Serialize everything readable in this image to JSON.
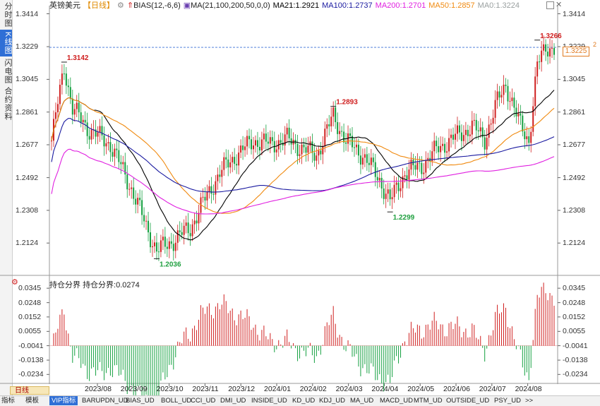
{
  "side_tabs": [
    "分时图",
    "K线图",
    "闪电图",
    "合约资料"
  ],
  "header": {
    "symbol": "英镑美元",
    "period": "【日线】",
    "bias_label": "BIAS(12,-6,6)",
    "ma_settings": "MA(21,100,200,50,0,0)",
    "ma21": "MA21:1.2921",
    "ma100": "MA100:1.2737",
    "ma200": "MA200:1.2701",
    "ma50": "MA50:1.2857",
    "ma0": "MA0:1.3224",
    "colors": {
      "ma21": "#000000",
      "ma100": "#1a1aa0",
      "ma200": "#e020e0",
      "ma50": "#f08a10",
      "ma0": "#9aa0a0"
    }
  },
  "price_axis": {
    "ticks": [
      "1.3414",
      "1.3229",
      "1.3045",
      "1.2861",
      "1.2677",
      "1.2492",
      "1.2308",
      "1.2124"
    ],
    "tick_values": [
      1.3414,
      1.3229,
      1.3045,
      1.2861,
      1.2677,
      1.2492,
      1.2308,
      1.2124
    ],
    "current_price": "1.3225",
    "marker": "2"
  },
  "annotations": [
    {
      "label": "1.3142",
      "value": 1.3142,
      "color": "#d02020",
      "date_idx": 6
    },
    {
      "label": "1.2036",
      "value": 1.2036,
      "color": "#20a040",
      "date_idx": 50
    },
    {
      "label": "1.2893",
      "value": 1.2893,
      "color": "#d02020",
      "date_idx": 134
    },
    {
      "label": "1.2299",
      "value": 1.2299,
      "color": "#20a040",
      "date_idx": 161
    },
    {
      "label": "1.3266",
      "value": 1.3266,
      "color": "#d02020",
      "date_idx": 231
    }
  ],
  "indicator": {
    "title": "持仓分界",
    "value_label": "持仓分界:0.0274",
    "ticks": [
      "0.0345",
      "0.0248",
      "0.0152",
      "0.0055",
      "-0.0041",
      "-0.0138",
      "-0.0234"
    ],
    "tick_values": [
      0.0345,
      0.0248,
      0.0152,
      0.0055,
      -0.0041,
      -0.0138,
      -0.0234
    ]
  },
  "time_axis": [
    "2023/08",
    "2023/09",
    "2023/10",
    "2023/11",
    "2023/12",
    "2024/01",
    "2024/02",
    "2024/03",
    "2024/04",
    "2024/05",
    "2024/06",
    "2024/07",
    "2024/08"
  ],
  "period_button": "日线",
  "bottom_tabs": [
    "指标",
    "模板",
    "VIP指标",
    "BARUPDN_UD",
    "BIAS_UD",
    "BOLL_UD",
    "CCI_UD",
    "DMI_UD",
    "INSIDE_UD",
    "KD_UD",
    "KDJ_UD",
    "MA_UD",
    "MACD_UD",
    "MTM_UD",
    "OUTSIDE_UD",
    "PSY_UD",
    ">>"
  ],
  "chart_data": {
    "type": "candlestick",
    "title": "英镑美元 日线",
    "ylim": [
      1.195,
      1.342
    ],
    "indicator_ylim": [
      -0.028,
      0.036
    ],
    "high_labels": [
      "1.3142",
      "1.2893",
      "1.3266"
    ],
    "low_labels": [
      "1.2036",
      "1.2299"
    ]
  }
}
